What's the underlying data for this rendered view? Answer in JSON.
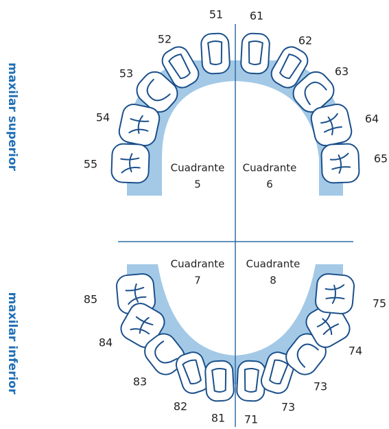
{
  "side_labels": {
    "upper": "maxilar superior",
    "lower": "maxilar inferior"
  },
  "quadrants": [
    {
      "label": "Cuadrante",
      "number": 5
    },
    {
      "label": "Cuadrante",
      "number": 6
    },
    {
      "label": "Cuadrante",
      "number": 7
    },
    {
      "label": "Cuadrante",
      "number": 8
    }
  ],
  "teeth": [
    51,
    52,
    53,
    54,
    55,
    61,
    62,
    63,
    64,
    65,
    85,
    84,
    83,
    82,
    81,
    71,
    73,
    73,
    74,
    75
  ]
}
